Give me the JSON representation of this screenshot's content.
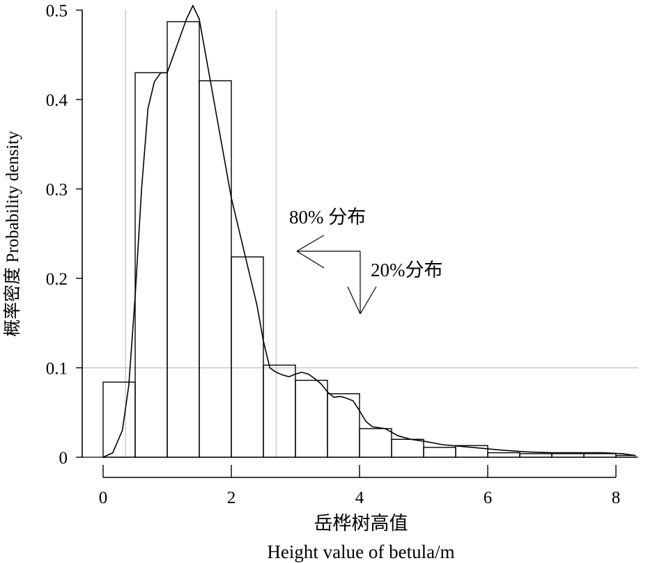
{
  "chart_data": {
    "type": "bar",
    "subtype": "histogram-with-density",
    "title": "",
    "xlabel_cn": "岳桦树高值",
    "xlabel_en": "Height value of betula/m",
    "ylabel": "概率密度  Probability density",
    "xlim": [
      0,
      8.3
    ],
    "ylim": [
      0,
      0.5
    ],
    "xticks": [
      0,
      2,
      4,
      6,
      8
    ],
    "xtick_labels": [
      "0",
      "2",
      "4",
      "6",
      "8"
    ],
    "yticks": [
      0,
      0.1,
      0.2,
      0.3,
      0.4,
      0.5
    ],
    "ytick_labels": [
      "0",
      "0.1",
      "0.2",
      "0.3",
      "0.4",
      "0.5"
    ],
    "grid": false,
    "bins": [
      {
        "x0": 0.0,
        "x1": 0.5,
        "value": 0.084
      },
      {
        "x0": 0.5,
        "x1": 1.0,
        "value": 0.43
      },
      {
        "x0": 1.0,
        "x1": 1.5,
        "value": 0.487
      },
      {
        "x0": 1.5,
        "x1": 2.0,
        "value": 0.421
      },
      {
        "x0": 2.0,
        "x1": 2.5,
        "value": 0.224
      },
      {
        "x0": 2.5,
        "x1": 3.0,
        "value": 0.103
      },
      {
        "x0": 3.0,
        "x1": 3.5,
        "value": 0.086
      },
      {
        "x0": 3.5,
        "x1": 4.0,
        "value": 0.071
      },
      {
        "x0": 4.0,
        "x1": 4.5,
        "value": 0.032
      },
      {
        "x0": 4.5,
        "x1": 5.0,
        "value": 0.02
      },
      {
        "x0": 5.0,
        "x1": 5.5,
        "value": 0.011
      },
      {
        "x0": 5.5,
        "x1": 6.0,
        "value": 0.013
      },
      {
        "x0": 6.0,
        "x1": 6.5,
        "value": 0.005
      },
      {
        "x0": 6.5,
        "x1": 7.0,
        "value": 0.004
      },
      {
        "x0": 7.0,
        "x1": 7.5,
        "value": 0.004
      },
      {
        "x0": 7.5,
        "x1": 8.0,
        "value": 0.004
      },
      {
        "x0": 8.0,
        "x1": 8.3,
        "value": 0.002
      }
    ],
    "density_curve": {
      "x": [
        0.0,
        0.15,
        0.3,
        0.4,
        0.5,
        0.6,
        0.7,
        0.8,
        0.9,
        1.0,
        1.1,
        1.2,
        1.3,
        1.4,
        1.5,
        1.6,
        1.7,
        1.8,
        1.9,
        2.0,
        2.1,
        2.2,
        2.3,
        2.4,
        2.5,
        2.6,
        2.7,
        2.8,
        2.9,
        3.0,
        3.1,
        3.2,
        3.3,
        3.4,
        3.5,
        3.6,
        3.7,
        3.8,
        3.9,
        4.0,
        4.1,
        4.2,
        4.4,
        4.6,
        4.8,
        5.0,
        5.3,
        5.6,
        5.9,
        6.2,
        6.6,
        7.0,
        7.4,
        7.8,
        8.1,
        8.3
      ],
      "y": [
        0.0,
        0.005,
        0.03,
        0.08,
        0.18,
        0.3,
        0.39,
        0.42,
        0.43,
        0.43,
        0.45,
        0.47,
        0.49,
        0.505,
        0.49,
        0.45,
        0.41,
        0.37,
        0.33,
        0.29,
        0.26,
        0.23,
        0.2,
        0.17,
        0.13,
        0.1,
        0.095,
        0.092,
        0.09,
        0.093,
        0.095,
        0.093,
        0.088,
        0.082,
        0.073,
        0.067,
        0.068,
        0.066,
        0.063,
        0.052,
        0.04,
        0.034,
        0.032,
        0.024,
        0.02,
        0.018,
        0.014,
        0.012,
        0.01,
        0.008,
        0.006,
        0.005,
        0.005,
        0.005,
        0.004,
        0.002
      ]
    },
    "reference_lines": [
      {
        "orientation": "vertical",
        "x": 0.35
      },
      {
        "orientation": "vertical",
        "x": 2.7
      },
      {
        "orientation": "horizontal",
        "y": 0.1
      }
    ],
    "annotations": [
      {
        "text": "80% 分布",
        "arrow": "left"
      },
      {
        "text": "20%分布",
        "arrow": "down"
      }
    ]
  }
}
